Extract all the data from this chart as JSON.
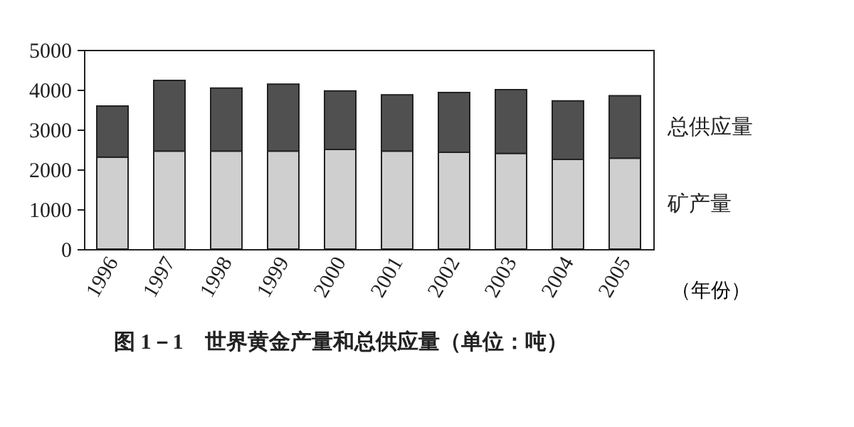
{
  "chart_data": {
    "type": "bar",
    "stacked": true,
    "categories": [
      "1996",
      "1997",
      "1998",
      "1999",
      "2000",
      "2001",
      "2002",
      "2003",
      "2004",
      "2005"
    ],
    "series": [
      {
        "name": "矿产量",
        "color": "#cfcfcf",
        "values": [
          2310,
          2460,
          2460,
          2460,
          2500,
          2460,
          2430,
          2400,
          2250,
          2280
        ]
      },
      {
        "name": "总供应量",
        "color": "#505050",
        "values": [
          1280,
          1770,
          1580,
          1680,
          1470,
          1410,
          1500,
          1600,
          1470,
          1570
        ]
      }
    ],
    "xlabel": "（年份）",
    "ylim": [
      0,
      5000
    ],
    "yticks": [
      0,
      1000,
      2000,
      3000,
      4000,
      5000
    ],
    "grid": false,
    "annotations": [
      "图 1－1　世界黄金产量和总供应量（单位：吨）"
    ]
  }
}
